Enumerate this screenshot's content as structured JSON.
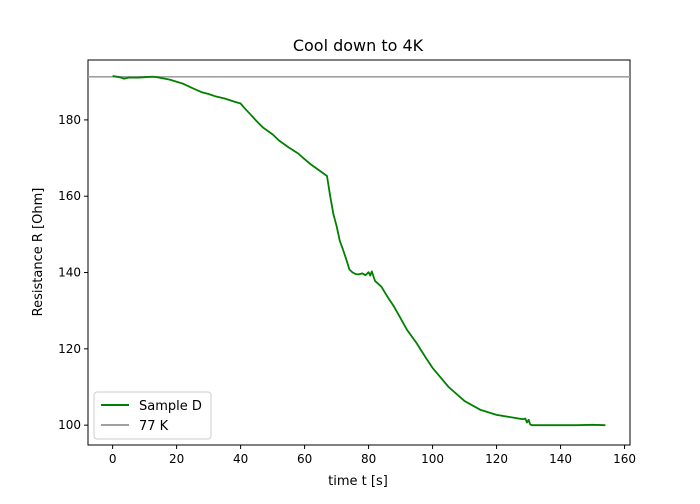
{
  "chart_data": {
    "type": "line",
    "title": "Cool down to 4K",
    "xlabel": "time t [s]",
    "ylabel": "Resistance R [Ohm]",
    "xlim": [
      -7.7,
      161.7
    ],
    "ylim": [
      94.8,
      195.7
    ],
    "x_ticks": [
      0,
      20,
      40,
      60,
      80,
      100,
      120,
      140,
      160
    ],
    "y_ticks": [
      100,
      120,
      140,
      160,
      180
    ],
    "grid": false,
    "legend_position": "lower-left",
    "series": [
      {
        "name": "Sample D",
        "color": "#008000",
        "x": [
          0,
          1.5,
          3,
          3.5,
          5,
          8,
          10,
          12,
          13,
          15,
          18,
          20,
          22,
          25,
          28,
          30,
          32,
          35,
          38,
          40,
          41,
          43,
          45,
          47,
          50,
          52,
          55,
          58,
          60,
          62,
          65,
          67,
          68,
          69,
          70,
          71,
          72,
          73,
          74,
          75,
          76,
          77,
          78,
          79,
          80,
          80.5,
          81,
          82,
          84,
          86,
          88,
          90,
          92,
          95,
          98,
          100,
          105,
          110,
          115,
          120,
          125,
          128,
          129,
          129.5,
          130,
          130.5,
          131,
          133,
          135,
          140,
          145,
          150,
          154
        ],
        "values": [
          191.5,
          191.3,
          191.0,
          190.8,
          191.1,
          191.1,
          191.2,
          191.3,
          191.3,
          191.0,
          190.5,
          190.0,
          189.5,
          188.3,
          187.2,
          186.8,
          186.2,
          185.6,
          184.8,
          184.3,
          183.3,
          181.5,
          179.7,
          178.0,
          176.2,
          174.6,
          172.8,
          171.2,
          169.7,
          168.3,
          166.5,
          165.3,
          160.0,
          155.3,
          152.2,
          148.3,
          146.0,
          143.5,
          140.8,
          140.0,
          139.6,
          139.5,
          139.8,
          139.3,
          140.1,
          139.2,
          140.3,
          137.8,
          136.3,
          133.5,
          131.0,
          128.0,
          125.0,
          121.5,
          117.5,
          115.0,
          110.0,
          106.3,
          104.0,
          102.7,
          102.0,
          101.6,
          101.7,
          100.7,
          101.4,
          100.2,
          100.0,
          100.0,
          100.0,
          100.0,
          100.0,
          100.1,
          100.0
        ]
      },
      {
        "name": "77 K",
        "color": "#a0a0a0",
        "type": "hline",
        "values": [
          191.3
        ]
      }
    ]
  }
}
